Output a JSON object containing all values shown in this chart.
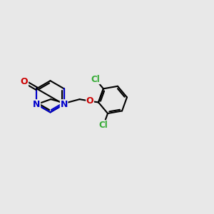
{
  "background_color": "#e8e8e8",
  "bond_color": "#000000",
  "n_color": "#0000cc",
  "o_color": "#cc0000",
  "cl_color": "#33aa33",
  "figure_size": [
    3.0,
    3.0
  ],
  "dpi": 100,
  "BL": 0.75,
  "xlim": [
    0,
    10
  ],
  "ylim": [
    0,
    10
  ]
}
